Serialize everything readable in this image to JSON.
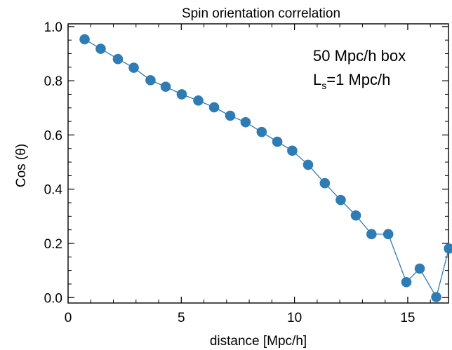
{
  "chart_data": {
    "type": "line",
    "title": "Spin orientation correlation",
    "xlabel": "distance [Mpc/h]",
    "ylabel": "Cos (θ)",
    "xlim": [
      0,
      16.8
    ],
    "ylim": [
      -0.02,
      1.01
    ],
    "xticks": [
      0,
      5,
      10,
      15
    ],
    "yticks": [
      0.0,
      0.2,
      0.4,
      0.6,
      0.8,
      1.0
    ],
    "xtick_labels": [
      "0",
      "5",
      "10",
      "15"
    ],
    "ytick_labels": [
      "0.0",
      "0.2",
      "0.4",
      "0.6",
      "0.8",
      "1.0"
    ],
    "annotations": {
      "line1": "50 Mpc/h box",
      "line2_main": "L",
      "line2_sub": "s",
      "line2_rest": "=1 Mpc/h"
    },
    "series": [
      {
        "color": "#2f7cb4",
        "x": [
          0.73,
          1.44,
          2.2,
          2.9,
          3.64,
          4.31,
          5.02,
          5.75,
          6.45,
          7.16,
          7.84,
          8.55,
          9.24,
          9.9,
          10.6,
          11.34,
          12.04,
          12.71,
          13.4,
          14.14,
          14.94,
          15.53,
          16.26,
          16.82
        ],
        "y": [
          0.953,
          0.918,
          0.88,
          0.848,
          0.802,
          0.778,
          0.75,
          0.727,
          0.702,
          0.671,
          0.647,
          0.611,
          0.575,
          0.542,
          0.49,
          0.422,
          0.36,
          0.303,
          0.234,
          0.234,
          0.057,
          0.107,
          0.002,
          0.181
        ]
      }
    ]
  }
}
